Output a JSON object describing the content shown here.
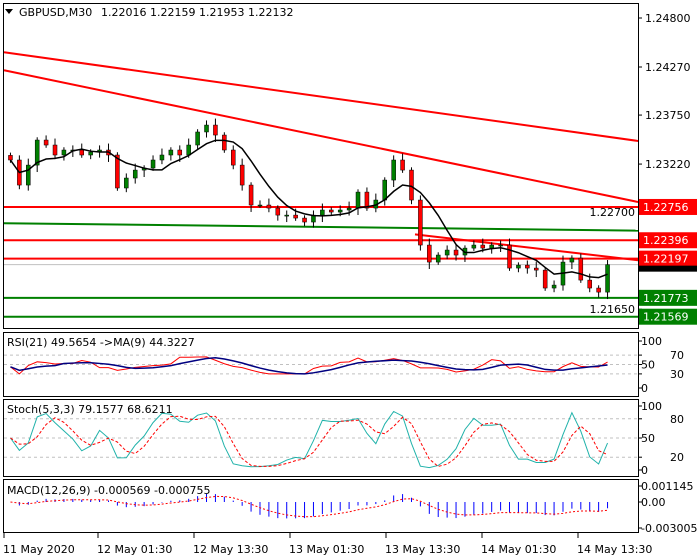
{
  "header": {
    "symbol": "GBPUSD,M30",
    "ohlc": "1.22016 1.22159 1.21953 1.22132",
    "menu_icon": "triangle-down-icon"
  },
  "colors": {
    "bull": "#008000",
    "bear": "#ff0000",
    "wick": "#000000",
    "ma": "#000000",
    "resistance": "#ff0000",
    "support": "#008000",
    "rsi": "#ff0000",
    "rsi_ma": "#000080",
    "stoch_main": "#20b2aa",
    "stoch_signal": "#ff0000",
    "macd_hist": "#0000ff",
    "macd_signal": "#ff0000"
  },
  "chart_data": [
    {
      "type": "candlestick",
      "title": "GBPUSD,M30",
      "ylim": [
        1.214,
        1.2495
      ],
      "y_ticks": [
        "1.24800",
        "1.24270",
        "1.23750",
        "1.23220",
        "1.22700",
        "1.21650"
      ],
      "x_ticks": [
        "11 May 2020",
        "12 May 01:30",
        "12 May 13:30",
        "13 May 01:30",
        "13 May 13:30",
        "14 May 01:30",
        "14 May 13:30"
      ],
      "current_price": "1.22132",
      "closes": [
        1.23264,
        1.22993,
        1.23209,
        1.2348,
        1.23426,
        1.23318,
        1.23372,
        1.23372,
        1.23318,
        1.2335,
        1.23372,
        1.23318,
        1.22961,
        1.23069,
        1.23155,
        1.23177,
        1.23264,
        1.23318,
        1.23372,
        1.23318,
        1.23426,
        1.23567,
        1.23642,
        1.23534,
        1.23372,
        1.23209,
        1.22993,
        1.22777,
        1.22777,
        1.22744,
        1.22668,
        1.22668,
        1.22636,
        1.22593,
        1.22668,
        1.22723,
        1.22701,
        1.22723,
        1.22744,
        1.22917,
        1.22744,
        1.22831,
        1.23047,
        1.23264,
        1.23155,
        1.22831,
        1.22344,
        1.2216,
        1.22236,
        1.2229,
        1.22236,
        1.22311,
        1.22344,
        1.22311,
        1.22344,
        1.22344,
        1.22095,
        1.22127,
        1.22095,
        1.22073,
        1.21879,
        1.21911,
        1.2216,
        1.22203,
        1.21965,
        1.21879,
        1.21835,
        1.22132
      ],
      "horizontal_levels": [
        {
          "price": "1.22756",
          "color": "#ff0000"
        },
        {
          "price": "1.22396",
          "color": "#ff0000"
        },
        {
          "price": "1.22197",
          "color": "#ff0000"
        },
        {
          "price": "1.21773",
          "color": "#008000"
        },
        {
          "price": "1.21569",
          "color": "#008000"
        }
      ],
      "trendlines": [
        {
          "color": "#ff0000",
          "from": 1.2443,
          "to": 1.2347
        },
        {
          "color": "#ff0000",
          "from": 1.24235,
          "to": 1.2281
        },
        {
          "color": "#ff0000",
          "from": 1.2246,
          "to": 1.2218
        },
        {
          "color": "#008000",
          "from": 1.2258,
          "to": 1.225
        }
      ]
    },
    {
      "type": "line",
      "title": "RSI(21) 49.5654  ->MA(9) 44.3227",
      "ylim": [
        0,
        100
      ],
      "y_ticks": [
        "100",
        "70",
        "50",
        "30",
        "0"
      ],
      "levels": [
        70,
        50,
        30
      ]
    },
    {
      "type": "line",
      "title": "Stoch(5,3,3) 79.1577 68.6211",
      "ylim": [
        0,
        100
      ],
      "y_ticks": [
        "100",
        "80",
        "50",
        "20",
        "0"
      ],
      "levels": [
        80,
        50,
        20
      ]
    },
    {
      "type": "bar",
      "title": "MACD(12,26,9) -0.000569 -0.000755",
      "y_ticks": [
        "0.001145",
        "0.00",
        "-0.003005"
      ]
    }
  ]
}
